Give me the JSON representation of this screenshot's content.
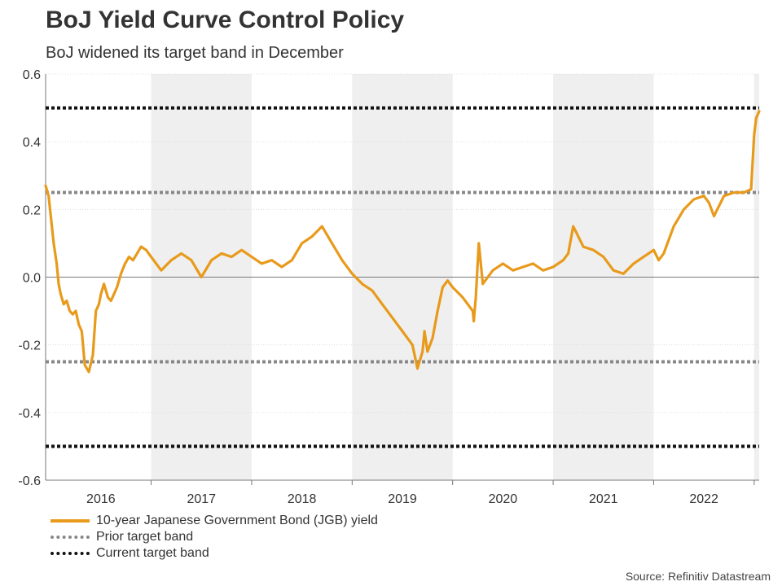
{
  "chart_data": {
    "type": "line",
    "title": "BoJ Yield Curve Control Policy",
    "subtitle": "BoJ widened its target band in December",
    "xlabel": "",
    "ylabel": "",
    "ylim": [
      -0.6,
      0.6
    ],
    "xlim": [
      2015.95,
      2023.05
    ],
    "yticks": [
      "0.6",
      "0.4",
      "0.2",
      "0.0",
      "-0.2",
      "-0.4",
      "-0.6"
    ],
    "ytick_values": [
      0.6,
      0.4,
      0.2,
      0.0,
      -0.2,
      -0.4,
      -0.6
    ],
    "xticks": [
      "2016",
      "2017",
      "2018",
      "2019",
      "2020",
      "2021",
      "2022"
    ],
    "xtick_values": [
      2016.5,
      2017.5,
      2018.5,
      2019.5,
      2020.5,
      2021.5,
      2022.5
    ],
    "shaded_years": [
      [
        2017,
        2018
      ],
      [
        2019,
        2020
      ],
      [
        2021,
        2022
      ],
      [
        2023,
        2023.05
      ]
    ],
    "reference_lines": [
      {
        "name": "Prior target band",
        "values": [
          0.25,
          -0.25
        ],
        "color": "#888888"
      },
      {
        "name": "Current target band",
        "values": [
          0.5,
          -0.5
        ],
        "color": "#111111"
      }
    ],
    "series": [
      {
        "name": "10-year Japanese Government Bond (JGB) yield",
        "color": "#e89a1b",
        "x": [
          2015.95,
          2015.98,
          2016.03,
          2016.06,
          2016.08,
          2016.1,
          2016.13,
          2016.16,
          2016.19,
          2016.22,
          2016.25,
          2016.28,
          2016.31,
          2016.34,
          2016.38,
          2016.42,
          2016.45,
          2016.48,
          2016.5,
          2016.53,
          2016.57,
          2016.6,
          2016.63,
          2016.66,
          2016.7,
          2016.74,
          2016.78,
          2016.82,
          2016.86,
          2016.9,
          2016.95,
          2017.0,
          2017.1,
          2017.2,
          2017.3,
          2017.4,
          2017.5,
          2017.6,
          2017.7,
          2017.8,
          2017.9,
          2018.0,
          2018.1,
          2018.2,
          2018.3,
          2018.4,
          2018.5,
          2018.6,
          2018.7,
          2018.8,
          2018.9,
          2019.0,
          2019.1,
          2019.2,
          2019.3,
          2019.4,
          2019.5,
          2019.6,
          2019.65,
          2019.7,
          2019.72,
          2019.75,
          2019.8,
          2019.85,
          2019.9,
          2019.95,
          2020.0,
          2020.1,
          2020.2,
          2020.21,
          2020.23,
          2020.26,
          2020.3,
          2020.4,
          2020.5,
          2020.6,
          2020.7,
          2020.8,
          2020.9,
          2021.0,
          2021.1,
          2021.15,
          2021.2,
          2021.3,
          2021.4,
          2021.5,
          2021.6,
          2021.7,
          2021.8,
          2021.9,
          2022.0,
          2022.05,
          2022.1,
          2022.2,
          2022.3,
          2022.4,
          2022.5,
          2022.55,
          2022.6,
          2022.7,
          2022.8,
          2022.9,
          2022.97,
          2023.0,
          2023.02,
          2023.05
        ],
        "values": [
          0.27,
          0.24,
          0.1,
          0.04,
          -0.02,
          -0.05,
          -0.08,
          -0.07,
          -0.1,
          -0.11,
          -0.1,
          -0.14,
          -0.16,
          -0.26,
          -0.28,
          -0.23,
          -0.1,
          -0.08,
          -0.05,
          -0.02,
          -0.06,
          -0.07,
          -0.05,
          -0.03,
          0.01,
          0.04,
          0.06,
          0.05,
          0.07,
          0.09,
          0.08,
          0.06,
          0.02,
          0.05,
          0.07,
          0.05,
          0.0,
          0.05,
          0.07,
          0.06,
          0.08,
          0.06,
          0.04,
          0.05,
          0.03,
          0.05,
          0.1,
          0.12,
          0.15,
          0.1,
          0.05,
          0.01,
          -0.02,
          -0.04,
          -0.08,
          -0.12,
          -0.16,
          -0.2,
          -0.27,
          -0.22,
          -0.16,
          -0.22,
          -0.18,
          -0.1,
          -0.03,
          -0.01,
          -0.03,
          -0.06,
          -0.1,
          -0.13,
          -0.06,
          0.1,
          -0.02,
          0.02,
          0.04,
          0.02,
          0.03,
          0.04,
          0.02,
          0.03,
          0.05,
          0.07,
          0.15,
          0.09,
          0.08,
          0.06,
          0.02,
          0.01,
          0.04,
          0.06,
          0.08,
          0.05,
          0.07,
          0.15,
          0.2,
          0.23,
          0.24,
          0.22,
          0.18,
          0.24,
          0.25,
          0.25,
          0.26,
          0.42,
          0.47,
          0.49
        ]
      }
    ]
  },
  "legend": {
    "items": [
      "10-year Japanese Government Bond (JGB) yield",
      "Prior target band",
      "Current target band"
    ]
  },
  "source": "Source: Refinitiv Datastream"
}
